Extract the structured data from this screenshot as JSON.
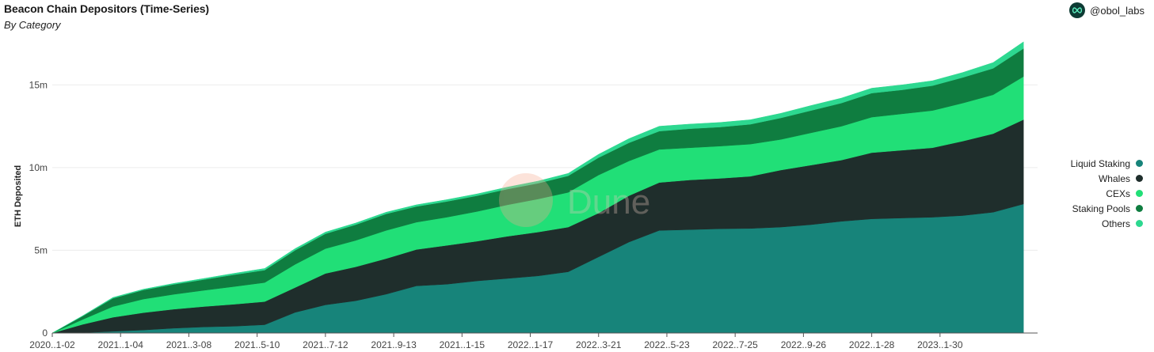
{
  "header": {
    "title": "Beacon Chain Depositors (Time-Series)",
    "subtitle": "By Category",
    "brand": "@obol_labs"
  },
  "watermark": "Dune",
  "chart_data": {
    "type": "area",
    "stacked": true,
    "title": "Beacon Chain Depositors (Time-Series)",
    "subtitle": "By Category",
    "xlabel": "",
    "ylabel": "ETH Deposited",
    "ylim": [
      0,
      17500000
    ],
    "yticks": [
      0,
      5000000,
      10000000,
      15000000
    ],
    "ytick_labels": [
      "0",
      "5m",
      "10m",
      "15m"
    ],
    "xlim": [
      "2020-11-02",
      "2023-04-30"
    ],
    "xticks": [
      "2020-11-02",
      "2021-01-04",
      "2021-03-08",
      "2021-05-10",
      "2021-07-12",
      "2021-09-13",
      "2021-11-15",
      "2022-01-17",
      "2022-03-21",
      "2022-05-23",
      "2022-07-25",
      "2022-09-26",
      "2022-11-28",
      "2023-01-30"
    ],
    "xtick_labels": [
      "2020..1-02",
      "2021..1-04",
      "2021..3-08",
      "2021..5-10",
      "2021..7-12",
      "2021..9-13",
      "2021..1-15",
      "2022..1-17",
      "2022..3-21",
      "2022..5-23",
      "2022..7-25",
      "2022..9-26",
      "2022..1-28",
      "2023..1-30"
    ],
    "grid": true,
    "legend_position": "right",
    "x": [
      "2020-11-02",
      "2020-11-30",
      "2020-12-28",
      "2021-01-25",
      "2021-02-22",
      "2021-03-22",
      "2021-04-19",
      "2021-05-17",
      "2021-06-14",
      "2021-07-12",
      "2021-08-09",
      "2021-09-06",
      "2021-10-04",
      "2021-11-01",
      "2021-11-29",
      "2021-12-27",
      "2022-01-24",
      "2022-02-21",
      "2022-03-21",
      "2022-04-18",
      "2022-05-16",
      "2022-06-13",
      "2022-07-11",
      "2022-08-08",
      "2022-09-05",
      "2022-10-03",
      "2022-10-31",
      "2022-11-28",
      "2022-12-26",
      "2023-01-23",
      "2023-02-20",
      "2023-03-20",
      "2023-04-17"
    ],
    "series": [
      {
        "name": "Liquid Staking",
        "color": "#17847a",
        "values": [
          0,
          20000,
          100000,
          180000,
          290000,
          370000,
          410000,
          500000,
          1250000,
          1700000,
          1950000,
          2350000,
          2850000,
          2950000,
          3150000,
          3300000,
          3450000,
          3700000,
          4600000,
          5500000,
          6200000,
          6250000,
          6300000,
          6320000,
          6400000,
          6550000,
          6750000,
          6900000,
          6950000,
          7000000,
          7100000,
          7300000,
          7800000
        ]
      },
      {
        "name": "Whales",
        "color": "#1f2e2c",
        "values": [
          0,
          500000,
          850000,
          1050000,
          1150000,
          1230000,
          1330000,
          1400000,
          1500000,
          1900000,
          2050000,
          2150000,
          2200000,
          2350000,
          2400000,
          2550000,
          2650000,
          2700000,
          2650000,
          2800000,
          2900000,
          3000000,
          3050000,
          3150000,
          3450000,
          3600000,
          3700000,
          4000000,
          4100000,
          4200000,
          4500000,
          4750000,
          5100000
        ]
      },
      {
        "name": "CEXs",
        "color": "#21df77",
        "values": [
          0,
          300000,
          650000,
          820000,
          900000,
          980000,
          1070000,
          1150000,
          1400000,
          1500000,
          1600000,
          1700000,
          1650000,
          1700000,
          1800000,
          1900000,
          2000000,
          2100000,
          2300000,
          2100000,
          2000000,
          1950000,
          1950000,
          1950000,
          1850000,
          1950000,
          2050000,
          2150000,
          2200000,
          2250000,
          2300000,
          2350000,
          2600000
        ]
      },
      {
        "name": "Staking Pools",
        "color": "#0f7d40",
        "values": [
          0,
          200000,
          500000,
          550000,
          600000,
          650000,
          720000,
          750000,
          850000,
          900000,
          950000,
          1000000,
          950000,
          950000,
          950000,
          950000,
          950000,
          1000000,
          1050000,
          1100000,
          1100000,
          1150000,
          1150000,
          1200000,
          1300000,
          1350000,
          1400000,
          1450000,
          1450000,
          1500000,
          1550000,
          1600000,
          1700000
        ]
      },
      {
        "name": "Others",
        "color": "#2dd890",
        "values": [
          0,
          20000,
          50000,
          50000,
          60000,
          70000,
          80000,
          100000,
          100000,
          100000,
          100000,
          100000,
          100000,
          110000,
          110000,
          120000,
          130000,
          150000,
          200000,
          250000,
          300000,
          280000,
          280000,
          270000,
          280000,
          300000,
          300000,
          300000,
          300000,
          300000,
          300000,
          350000,
          400000
        ]
      }
    ]
  }
}
